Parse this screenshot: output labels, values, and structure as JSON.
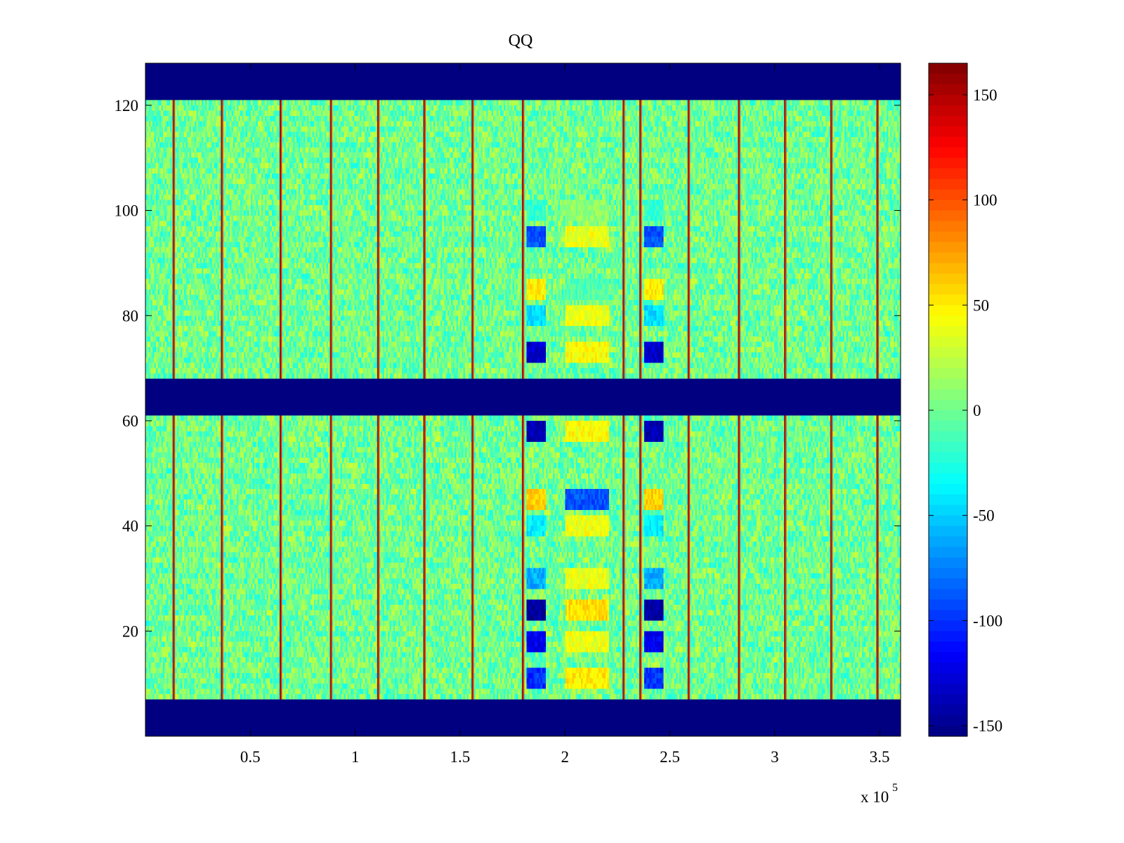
{
  "chart_data": {
    "type": "heatmap",
    "title": "QQ",
    "xlabel": "",
    "ylabel": "",
    "x_multiplier_label": {
      "base": "x 10",
      "exponent": "5"
    },
    "xlim": [
      0,
      3.6
    ],
    "ylim": [
      0,
      128
    ],
    "x_ticks": [
      0.5,
      1,
      1.5,
      2,
      2.5,
      3,
      3.5
    ],
    "x_tick_labels": [
      "0.5",
      "1",
      "1.5",
      "2",
      "2.5",
      "3",
      "3.5"
    ],
    "y_ticks": [
      20,
      40,
      60,
      80,
      100,
      120
    ],
    "y_tick_labels": [
      "20",
      "40",
      "60",
      "80",
      "100",
      "120"
    ],
    "colorbar": {
      "colormap": "jet",
      "clim": [
        -155,
        165
      ],
      "ticks": [
        -150,
        -100,
        -50,
        0,
        50,
        100,
        150
      ],
      "tick_labels": [
        "-150",
        "-100",
        "-50",
        "0",
        "50",
        "100",
        "150"
      ]
    },
    "background_value": 0,
    "blank_row_bands": [
      {
        "y": [
          0,
          7
        ],
        "value": -155
      },
      {
        "y": [
          61,
          68
        ],
        "value": -155
      },
      {
        "y": [
          121,
          128
        ],
        "value": -155
      }
    ],
    "vertical_stripes_x": [
      0.135,
      0.365,
      0.645,
      0.885,
      1.11,
      1.33,
      1.56,
      1.8,
      2.28,
      2.36,
      2.59,
      2.83,
      3.05,
      3.27,
      3.49
    ],
    "feature_columns": [
      {
        "x": [
          1.82,
          1.91
        ],
        "pattern": "A"
      },
      {
        "x": [
          2.0,
          2.21
        ],
        "pattern": "B"
      },
      {
        "x": [
          2.38,
          2.47
        ],
        "pattern": "A"
      }
    ],
    "feature_rows": [
      {
        "y": 100,
        "value_a": -20,
        "value_b": 10
      },
      {
        "y": 95,
        "value_a": -90,
        "value_b": 40
      },
      {
        "y": 85,
        "value_a": 50,
        "value_b": -10
      },
      {
        "y": 80,
        "value_a": -45,
        "value_b": 40
      },
      {
        "y": 73,
        "value_a": -130,
        "value_b": 45
      },
      {
        "y": 58,
        "value_a": -140,
        "value_b": 45
      },
      {
        "y": 45,
        "value_a": 60,
        "value_b": -90
      },
      {
        "y": 40,
        "value_a": -40,
        "value_b": 40
      },
      {
        "y": 30,
        "value_a": -60,
        "value_b": 40
      },
      {
        "y": 24,
        "value_a": -145,
        "value_b": 55
      },
      {
        "y": 18,
        "value_a": -120,
        "value_b": 40
      },
      {
        "y": 11,
        "value_a": -100,
        "value_b": 50
      }
    ],
    "grid": false,
    "legend": "none"
  }
}
